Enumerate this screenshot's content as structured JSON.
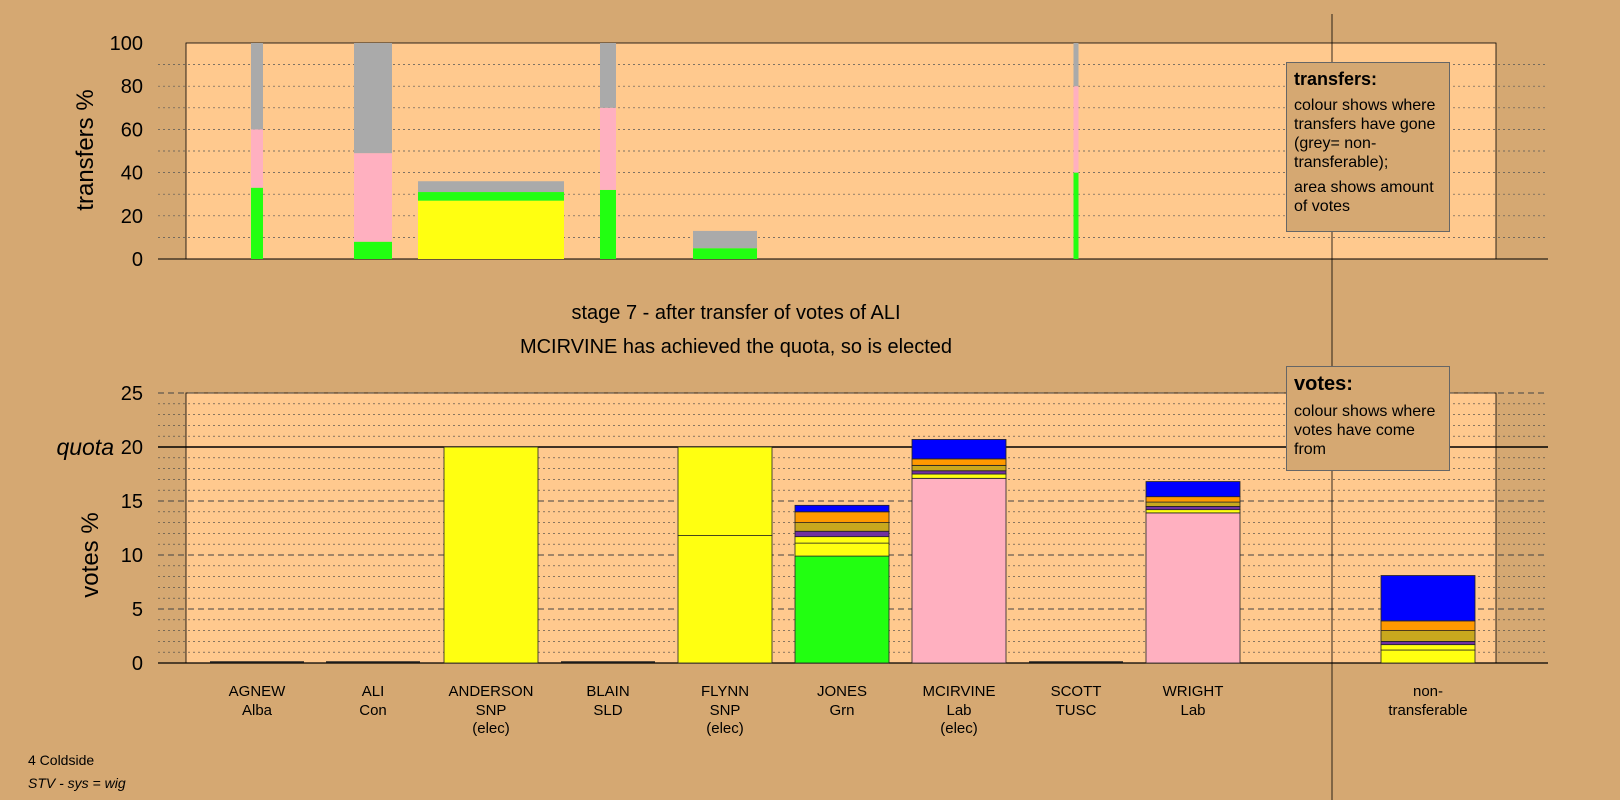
{
  "chart_data": [
    {
      "type": "bar",
      "ylabel": "transfers %",
      "ylim": [
        0,
        100
      ],
      "yticks": [
        0,
        20,
        40,
        60,
        80,
        100
      ],
      "grid": true,
      "segment_colors": {
        "green": "#22FF11",
        "pink": "#FFB0C0",
        "grey": "#AAAAAA",
        "yellow": "#FFFF11"
      },
      "bars": [
        {
          "candidate": "AGNEW",
          "segments": [
            {
              "color": "green",
              "value": 33
            },
            {
              "color": "pink",
              "value": 27
            },
            {
              "color": "grey",
              "value": 40
            }
          ]
        },
        {
          "candidate": "ALI",
          "segments": [
            {
              "color": "green",
              "value": 8
            },
            {
              "color": "pink",
              "value": 41
            },
            {
              "color": "grey",
              "value": 51
            }
          ]
        },
        {
          "candidate": "ANDERSON",
          "segments": [
            {
              "color": "yellow",
              "value": 27
            },
            {
              "color": "green",
              "value": 4
            },
            {
              "color": "grey",
              "value": 5
            }
          ]
        },
        {
          "candidate": "BLAIN",
          "segments": [
            {
              "color": "green",
              "value": 32
            },
            {
              "color": "pink",
              "value": 38
            },
            {
              "color": "grey",
              "value": 30
            }
          ]
        },
        {
          "candidate": "FLYNN",
          "segments": [
            {
              "color": "green",
              "value": 5
            },
            {
              "color": "grey",
              "value": 8
            }
          ]
        },
        {
          "candidate": "SCOTT",
          "segments": [
            {
              "color": "green",
              "value": 40
            },
            {
              "color": "pink",
              "value": 40
            },
            {
              "color": "grey",
              "value": 20
            }
          ]
        }
      ]
    },
    {
      "type": "bar",
      "ylabel": "votes %",
      "ylim": [
        0,
        25
      ],
      "yticks": [
        0,
        5,
        10,
        15,
        20,
        25
      ],
      "quota": 20,
      "quota_label": "quota",
      "grid": true,
      "categories": [
        {
          "name": "AGNEW",
          "party": "Alba",
          "note": ""
        },
        {
          "name": "ALI",
          "party": "Con",
          "note": ""
        },
        {
          "name": "ANDERSON",
          "party": "SNP",
          "note": "(elec)"
        },
        {
          "name": "BLAIN",
          "party": "SLD",
          "note": ""
        },
        {
          "name": "FLYNN",
          "party": "SNP",
          "note": "(elec)"
        },
        {
          "name": "JONES",
          "party": "Grn",
          "note": ""
        },
        {
          "name": "MCIRVINE",
          "party": "Lab",
          "note": "(elec)"
        },
        {
          "name": "SCOTT",
          "party": "TUSC",
          "note": ""
        },
        {
          "name": "WRIGHT",
          "party": "Lab",
          "note": ""
        },
        {
          "name": "non-",
          "party": "transferable",
          "note": ""
        }
      ],
      "segment_colors": {
        "yellow": "#FFFF11",
        "green": "#22FF11",
        "pink": "#FFB0C0",
        "purple": "#7030A0",
        "gold": "#C8A81E",
        "orange": "#FF9900",
        "blue": "#0000FF"
      },
      "bars": [
        {
          "candidate": "ANDERSON",
          "segments": [
            {
              "color": "yellow",
              "value": 20
            }
          ]
        },
        {
          "candidate": "FLYNN",
          "segments": [
            {
              "color": "yellow",
              "value": 11.8
            },
            {
              "color": "yellow",
              "value": 8.2
            }
          ]
        },
        {
          "candidate": "JONES",
          "segments": [
            {
              "color": "green",
              "value": 9.9
            },
            {
              "color": "yellow",
              "value": 1.2
            },
            {
              "color": "yellow",
              "value": 0.6
            },
            {
              "color": "purple",
              "value": 0.5
            },
            {
              "color": "gold",
              "value": 0.8
            },
            {
              "color": "orange",
              "value": 1.0
            },
            {
              "color": "blue",
              "value": 0.6
            }
          ]
        },
        {
          "candidate": "MCIRVINE",
          "segments": [
            {
              "color": "pink",
              "value": 17.1
            },
            {
              "color": "yellow",
              "value": 0.4
            },
            {
              "color": "purple",
              "value": 0.3
            },
            {
              "color": "gold",
              "value": 0.5
            },
            {
              "color": "orange",
              "value": 0.6
            },
            {
              "color": "blue",
              "value": 1.8
            }
          ]
        },
        {
          "candidate": "WRIGHT",
          "segments": [
            {
              "color": "pink",
              "value": 13.9
            },
            {
              "color": "yellow",
              "value": 0.3
            },
            {
              "color": "purple",
              "value": 0.3
            },
            {
              "color": "gold",
              "value": 0.4
            },
            {
              "color": "orange",
              "value": 0.5
            },
            {
              "color": "blue",
              "value": 1.4
            }
          ]
        },
        {
          "candidate": "non-transferable",
          "segments": [
            {
              "color": "yellow",
              "value": 1.2
            },
            {
              "color": "yellow",
              "value": 0.5
            },
            {
              "color": "purple",
              "value": 0.3
            },
            {
              "color": "gold",
              "value": 1.0
            },
            {
              "color": "orange",
              "value": 0.9
            },
            {
              "color": "blue",
              "value": 4.2
            }
          ]
        }
      ]
    }
  ],
  "stage": {
    "line1": "stage 7 - after transfer of votes of ALI",
    "line2": "MCIRVINE has achieved the quota, so is elected"
  },
  "legends": {
    "transfers": {
      "title": "transfers:",
      "body1": "colour shows where transfers have gone (grey= non-transferable);",
      "body2": "area shows amount of votes"
    },
    "votes": {
      "title": "votes:",
      "body1": "colour shows where votes have come from"
    }
  },
  "footer": {
    "ward": "4 Coldside",
    "system": "STV - sys = wig"
  }
}
